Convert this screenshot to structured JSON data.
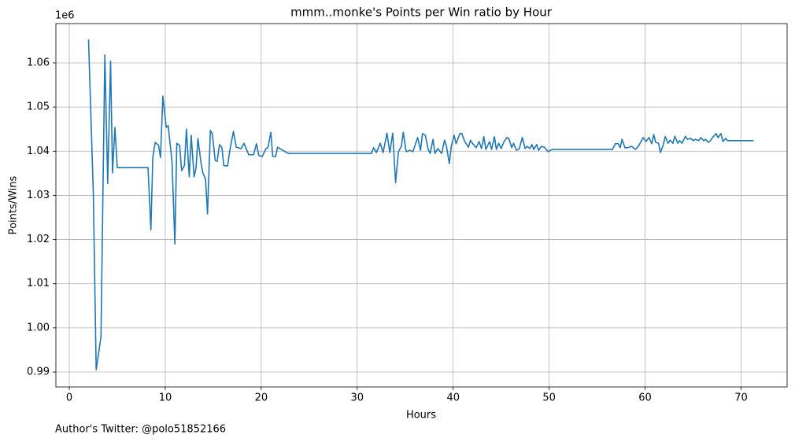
{
  "chart_data": {
    "type": "line",
    "title": "mmm..monke's Points per Win ratio by Hour",
    "xlabel": "Hours",
    "ylabel": "Points/Wins",
    "offset_text": "1e6",
    "annotation": "Author's Twitter: @polo51852166",
    "color": "#1f77b4",
    "grid": true,
    "xlim": [
      -1.4,
      74.8
    ],
    "ylim": [
      986620,
      1068900
    ],
    "xticks": [
      0,
      10,
      20,
      30,
      40,
      50,
      60,
      70
    ],
    "yticks": [
      {
        "value": 990000,
        "label": "0.99"
      },
      {
        "value": 1000000,
        "label": "1.00"
      },
      {
        "value": 1010000,
        "label": "1.01"
      },
      {
        "value": 1020000,
        "label": "1.02"
      },
      {
        "value": 1030000,
        "label": "1.03"
      },
      {
        "value": 1040000,
        "label": "1.04"
      },
      {
        "value": 1050000,
        "label": "1.05"
      },
      {
        "value": 1060000,
        "label": "1.06"
      }
    ],
    "x": [
      2.0,
      2.5,
      2.8,
      3.3,
      3.7,
      4.0,
      4.3,
      4.5,
      4.75,
      5.0,
      8.2,
      8.5,
      8.7,
      8.95,
      9.3,
      9.5,
      9.75,
      10.1,
      10.3,
      10.7,
      11.0,
      11.2,
      11.5,
      11.7,
      12.0,
      12.2,
      12.5,
      12.7,
      13.0,
      13.2,
      13.4,
      13.7,
      13.9,
      14.2,
      14.4,
      14.7,
      14.9,
      15.2,
      15.4,
      15.65,
      15.9,
      16.1,
      16.5,
      16.7,
      17.1,
      17.4,
      17.9,
      18.2,
      18.7,
      19.2,
      19.5,
      19.75,
      20.1,
      20.5,
      20.7,
      21.0,
      21.2,
      21.5,
      21.7,
      22.8,
      31.5,
      31.7,
      32.0,
      32.4,
      32.7,
      33.1,
      33.4,
      33.7,
      34.0,
      34.3,
      34.6,
      34.8,
      35.1,
      35.5,
      35.8,
      36.3,
      36.6,
      36.8,
      37.1,
      37.4,
      37.6,
      37.9,
      38.1,
      38.4,
      38.8,
      39.1,
      39.3,
      39.6,
      39.8,
      40.1,
      40.3,
      40.7,
      40.9,
      41.2,
      41.6,
      41.8,
      42.0,
      42.4,
      42.7,
      42.95,
      43.2,
      43.4,
      43.8,
      44.0,
      44.3,
      44.5,
      44.75,
      45.0,
      45.3,
      45.6,
      45.8,
      46.1,
      46.3,
      46.6,
      46.9,
      47.2,
      47.5,
      47.7,
      48.0,
      48.2,
      48.4,
      48.7,
      48.9,
      49.2,
      49.5,
      49.9,
      50.3,
      56.6,
      56.9,
      57.2,
      57.4,
      57.6,
      57.9,
      58.2,
      58.6,
      59.0,
      59.3,
      59.8,
      60.1,
      60.4,
      60.7,
      60.9,
      61.1,
      61.4,
      61.6,
      61.9,
      62.1,
      62.4,
      62.6,
      62.9,
      63.1,
      63.4,
      63.6,
      63.85,
      64.2,
      64.4,
      64.75,
      65.0,
      65.2,
      65.6,
      65.8,
      66.1,
      66.3,
      66.6,
      66.8,
      67.1,
      67.4,
      67.6,
      67.9,
      68.1,
      68.4,
      68.6,
      71.3
    ],
    "values": [
      1065300,
      1030600,
      990500,
      998000,
      1061800,
      1032700,
      1060400,
      1035100,
      1045400,
      1036300,
      1036300,
      1022200,
      1038600,
      1042000,
      1041300,
      1038600,
      1052500,
      1045400,
      1045800,
      1037700,
      1019000,
      1041800,
      1041300,
      1035600,
      1036800,
      1045000,
      1034200,
      1043600,
      1034200,
      1036100,
      1042900,
      1037700,
      1035200,
      1033600,
      1025800,
      1044700,
      1044000,
      1037900,
      1037700,
      1041500,
      1040800,
      1036700,
      1036700,
      1039900,
      1044500,
      1040900,
      1040600,
      1041800,
      1039200,
      1039200,
      1041700,
      1039000,
      1038800,
      1040600,
      1040800,
      1044300,
      1038800,
      1038800,
      1040900,
      1039500,
      1039500,
      1040800,
      1039700,
      1041800,
      1039700,
      1044100,
      1039700,
      1044100,
      1032900,
      1039900,
      1041100,
      1044300,
      1039900,
      1040200,
      1039900,
      1043100,
      1040200,
      1044000,
      1043600,
      1040400,
      1039500,
      1042700,
      1039500,
      1040600,
      1039500,
      1042500,
      1041100,
      1037200,
      1041100,
      1043600,
      1041700,
      1044000,
      1044000,
      1042200,
      1040900,
      1042500,
      1041800,
      1040800,
      1042200,
      1040600,
      1043300,
      1040400,
      1042200,
      1040400,
      1043300,
      1040400,
      1041800,
      1040600,
      1042200,
      1043100,
      1042900,
      1040800,
      1041800,
      1040200,
      1040600,
      1043100,
      1040600,
      1041100,
      1040600,
      1041500,
      1040400,
      1041500,
      1040200,
      1041100,
      1040900,
      1039900,
      1040400,
      1040400,
      1041700,
      1041700,
      1040800,
      1042700,
      1040800,
      1040800,
      1041100,
      1040400,
      1041100,
      1043100,
      1042200,
      1043100,
      1041700,
      1043800,
      1042000,
      1041800,
      1039700,
      1041500,
      1043300,
      1041800,
      1042500,
      1041800,
      1043400,
      1041800,
      1042400,
      1041800,
      1043400,
      1042700,
      1042900,
      1042400,
      1042700,
      1042400,
      1043100,
      1042400,
      1042700,
      1042000,
      1042400,
      1043300,
      1044000,
      1043100,
      1044000,
      1042200,
      1042900,
      1042400,
      1042400
    ]
  }
}
